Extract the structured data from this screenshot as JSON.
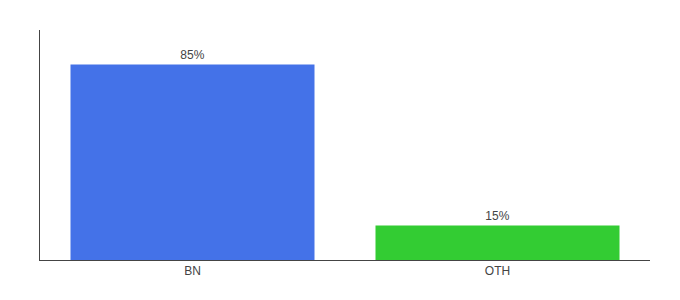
{
  "chart_data": {
    "type": "bar",
    "categories": [
      "BN",
      "OTH"
    ],
    "values": [
      85,
      15
    ],
    "value_labels": [
      "85%",
      "15%"
    ],
    "colors": [
      "#4472e8",
      "#33cc33"
    ],
    "ylim": [
      0,
      100
    ],
    "yticks": [],
    "grid": false,
    "data_labels": true,
    "tick_labels": "x"
  }
}
